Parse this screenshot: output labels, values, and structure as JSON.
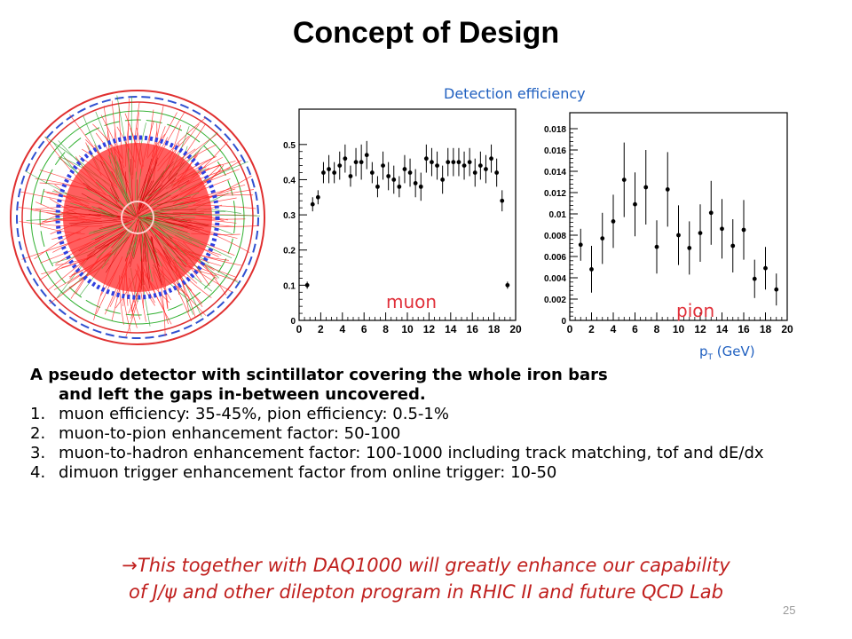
{
  "slide": {
    "title": "Concept of Design",
    "page_number": "25"
  },
  "figure": {
    "detection_label": "Detection efficiency",
    "xaxis_label_main": "p",
    "xaxis_label_sub": "T",
    "xaxis_label_unit": " (GeV)"
  },
  "chart_data": [
    {
      "type": "scatter",
      "title": "",
      "series_label": "muon",
      "xlabel": "",
      "ylabel": "",
      "xlim": [
        0,
        20
      ],
      "ylim": [
        0,
        0.55
      ],
      "xticks": [
        "0",
        "2",
        "4",
        "6",
        "8",
        "10",
        "12",
        "14",
        "16",
        "18",
        "20"
      ],
      "yticks": [
        "0",
        "0.1",
        "0.2",
        "0.3",
        "0.4",
        "0.5"
      ],
      "ytick_values": [
        0,
        0.1,
        0.2,
        0.3,
        0.4,
        0.5
      ],
      "x": [
        0.75,
        1.25,
        1.75,
        2.25,
        2.75,
        3.25,
        3.75,
        4.25,
        4.75,
        5.25,
        5.75,
        6.25,
        6.75,
        7.25,
        7.75,
        8.25,
        8.75,
        9.25,
        9.75,
        10.25,
        10.75,
        11.25,
        11.75,
        12.25,
        12.75,
        13.25,
        13.75,
        14.25,
        14.75,
        15.25,
        15.75,
        16.25,
        16.75,
        17.25,
        17.75,
        18.25,
        18.75,
        19.25
      ],
      "y": [
        0.1,
        0.33,
        0.35,
        0.42,
        0.43,
        0.42,
        0.44,
        0.46,
        0.41,
        0.45,
        0.45,
        0.47,
        0.42,
        0.38,
        0.44,
        0.41,
        0.4,
        0.38,
        0.43,
        0.42,
        0.39,
        0.38,
        0.46,
        0.45,
        0.44,
        0.4,
        0.45,
        0.45,
        0.45,
        0.44,
        0.45,
        0.42,
        0.44,
        0.43,
        0.46,
        0.42,
        0.34,
        0.1
      ],
      "yerr": [
        0.01,
        0.02,
        0.02,
        0.03,
        0.04,
        0.03,
        0.04,
        0.04,
        0.03,
        0.04,
        0.05,
        0.04,
        0.03,
        0.03,
        0.04,
        0.04,
        0.04,
        0.03,
        0.04,
        0.04,
        0.04,
        0.04,
        0.04,
        0.04,
        0.04,
        0.04,
        0.04,
        0.04,
        0.04,
        0.04,
        0.04,
        0.04,
        0.04,
        0.04,
        0.04,
        0.04,
        0.03,
        0.01
      ],
      "grid": false
    },
    {
      "type": "scatter",
      "title": "",
      "series_label": "pion",
      "xlabel": "pT (GeV)",
      "ylabel": "",
      "xlim": [
        0,
        20
      ],
      "ylim": [
        0,
        0.019
      ],
      "xticks": [
        "0",
        "2",
        "4",
        "6",
        "8",
        "10",
        "12",
        "14",
        "16",
        "18",
        "20"
      ],
      "yticks": [
        "0",
        "0.002",
        "0.004",
        "0.006",
        "0.008",
        "0.01",
        "0.012",
        "0.014",
        "0.016",
        "0.018"
      ],
      "ytick_values": [
        0,
        0.002,
        0.004,
        0.006,
        0.008,
        0.01,
        0.012,
        0.014,
        0.016,
        0.018
      ],
      "x": [
        1,
        2,
        3,
        4,
        5,
        6,
        7,
        8,
        9,
        10,
        11,
        12,
        13,
        14,
        15,
        16,
        17,
        18,
        19
      ],
      "y": [
        0.0071,
        0.0048,
        0.0077,
        0.0093,
        0.0132,
        0.0109,
        0.0125,
        0.0069,
        0.0123,
        0.008,
        0.0068,
        0.0082,
        0.0101,
        0.0086,
        0.007,
        0.0085,
        0.0039,
        0.0049,
        0.0029
      ],
      "yerr": [
        0.0015,
        0.0022,
        0.0024,
        0.0025,
        0.0035,
        0.003,
        0.0035,
        0.0025,
        0.0035,
        0.0028,
        0.0025,
        0.0027,
        0.003,
        0.0028,
        0.0025,
        0.0028,
        0.0018,
        0.002,
        0.0015
      ],
      "grid": false
    }
  ],
  "main": {
    "intro_line1": "A pseudo detector with scintillator covering the whole iron bars",
    "intro_line2": "and left the gaps in-between uncovered.",
    "items": [
      {
        "num": "1.",
        "text": "muon efficiency: 35-45%, pion efficiency: 0.5-1%"
      },
      {
        "num": "2.",
        "text": "muon-to-pion enhancement factor: 50-100"
      },
      {
        "num": "3.",
        "text": "muon-to-hadron enhancement factor: 100-1000  including track matching, tof and dE/dx"
      },
      {
        "num": "4.",
        "text": "dimuon trigger enhancement factor from online trigger: 10-50"
      }
    ],
    "conclusion_arrow": "→",
    "conclusion_line1": "This together with DAQ1000 will greatly enhance our capability",
    "conclusion_line2_a": "of J/",
    "conclusion_psi": "ψ",
    "conclusion_line2_b": "  and other dilepton program in RHIC II and future QCD Lab"
  },
  "colors": {
    "title": "#000000",
    "accent_blue": "#2060c0",
    "series_label": "#e0303a",
    "conclusion": "#c0201e",
    "detector_red": "#ff2020",
    "detector_green": "#30b030",
    "detector_blue": "#2040d0"
  }
}
